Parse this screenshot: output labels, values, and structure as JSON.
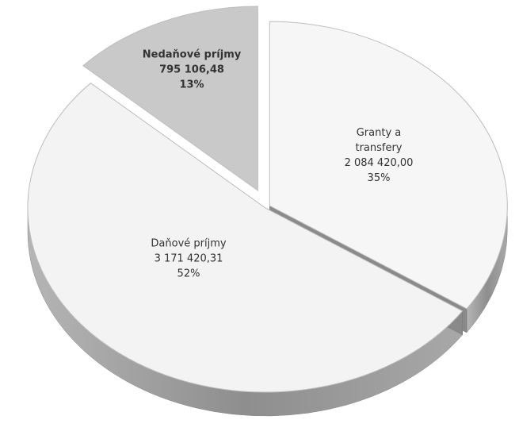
{
  "chart_data": {
    "type": "pie",
    "categories": [
      "Granty a transfery",
      "Daňové príjmy",
      "Nedaňové príjmy"
    ],
    "values": [
      2084420.0,
      3171420.31,
      795106.48
    ],
    "value_labels": [
      "2 084 420,00",
      "3 171 420,31",
      "795 106,48"
    ],
    "percent_labels": [
      "35%",
      "52%",
      "13%"
    ],
    "colors": [
      "#f6f6f6",
      "#f3f3f3",
      "#c9c9c9"
    ]
  }
}
